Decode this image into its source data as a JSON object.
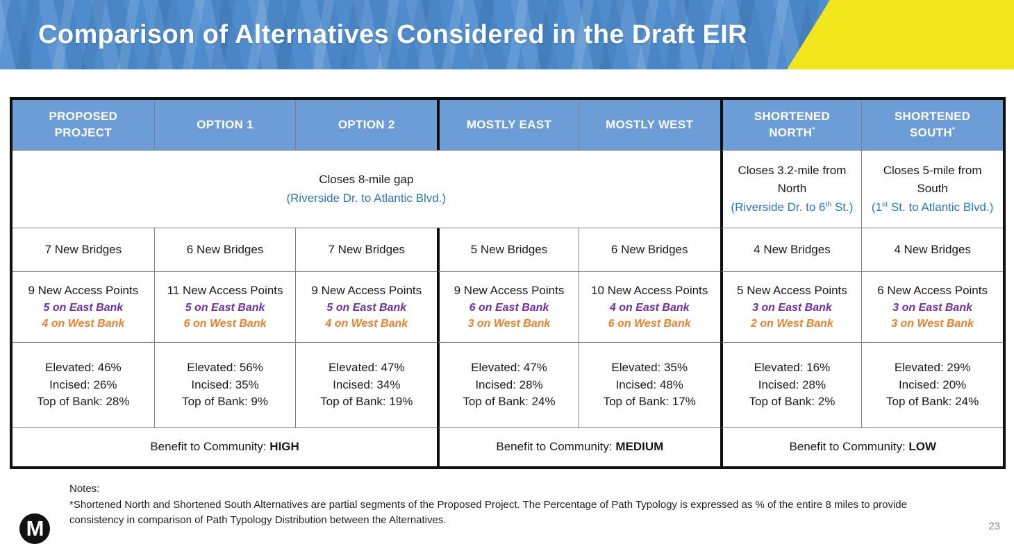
{
  "banner": {
    "title": "Comparison of Alternatives Considered in the Draft EIR",
    "blue_color": "#4e8ccd",
    "yellow_color": "#f2e71d"
  },
  "colors": {
    "header_bg": "#6c9dd6",
    "blue_text": "#2e75b6",
    "east_bank_purple": "#7030a0",
    "west_bank_orange": "#e8812d",
    "thick_border": "#0f0f0f",
    "thin_border": "#7f7f7f"
  },
  "table": {
    "columns": [
      {
        "header_line1": "PROPOSED",
        "header_line2": "PROJECT",
        "header_sup": "",
        "bridges": "7 New Bridges",
        "access": "9 New Access Points",
        "east_bank": "5 on East Bank",
        "west_bank": "4 on West Bank",
        "elevated": "Elevated: 46%",
        "incised": "Incised: 26%",
        "top_of_bank": "Top of Bank: 28%"
      },
      {
        "header_line1": "OPTION 1",
        "header_line2": "",
        "header_sup": "",
        "bridges": "6 New Bridges",
        "access": "11 New Access Points",
        "east_bank": "5 on East Bank",
        "west_bank": "6 on West Bank",
        "elevated": "Elevated: 56%",
        "incised": "Incised: 35%",
        "top_of_bank": "Top of Bank: 9%"
      },
      {
        "header_line1": "OPTION 2",
        "header_line2": "",
        "header_sup": "",
        "bridges": "7 New Bridges",
        "access": "9 New Access Points",
        "east_bank": "5 on East Bank",
        "west_bank": "4 on West Bank",
        "elevated": "Elevated: 47%",
        "incised": "Incised: 34%",
        "top_of_bank": "Top of Bank: 19%"
      },
      {
        "header_line1": "MOSTLY EAST",
        "header_line2": "",
        "header_sup": "",
        "bridges": "5 New Bridges",
        "access": "9 New Access Points",
        "east_bank": "6 on East Bank",
        "west_bank": "3 on West Bank",
        "elevated": "Elevated: 47%",
        "incised": "Incised: 28%",
        "top_of_bank": "Top of Bank: 24%"
      },
      {
        "header_line1": "MOSTLY WEST",
        "header_line2": "",
        "header_sup": "",
        "bridges": "6 New Bridges",
        "access": "10 New Access Points",
        "east_bank": "4 on East Bank",
        "west_bank": "6 on West Bank",
        "elevated": "Elevated: 35%",
        "incised": "Incised: 48%",
        "top_of_bank": "Top of Bank: 17%"
      },
      {
        "header_line1": "SHORTENED",
        "header_line2": "NORTH",
        "header_sup": "*",
        "bridges": "4 New Bridges",
        "access": "5 New Access Points",
        "east_bank": "3 on East Bank",
        "west_bank": "2 on West Bank",
        "elevated": "Elevated: 16%",
        "incised": "Incised: 28%",
        "top_of_bank": "Top of Bank: 2%"
      },
      {
        "header_line1": "SHORTENED",
        "header_line2": "SOUTH",
        "header_sup": "*",
        "bridges": "4 New Bridges",
        "access": "6 New Access Points",
        "east_bank": "3 on East Bank",
        "west_bank": "3 on West Bank",
        "elevated": "Elevated: 29%",
        "incised": "Incised: 20%",
        "top_of_bank": "Top of Bank: 24%"
      }
    ],
    "gap_main": {
      "black": "Closes 8-mile gap",
      "blue": "(Riverside Dr. to Atlantic Blvd.)"
    },
    "gap_north": {
      "black": "Closes 3.2-mile from North",
      "blue_pre": "(Riverside Dr. to 6",
      "blue_sup": "th",
      "blue_post": " St.)"
    },
    "gap_south": {
      "black": "Closes 5-mile from South",
      "blue_pre": "(1",
      "blue_sup": "st",
      "blue_post": " St. to Atlantic Blvd.)"
    },
    "benefit": [
      {
        "label": "Benefit to Community: ",
        "level": "HIGH"
      },
      {
        "label": "Benefit to Community: ",
        "level": "MEDIUM"
      },
      {
        "label": "Benefit to Community: ",
        "level": "LOW"
      }
    ]
  },
  "footer": {
    "notes_heading": "Notes:",
    "notes_text": "*Shortened North and Shortened South Alternatives are partial segments of the Proposed Project.  The Percentage of Path Typology is expressed as % of the entire 8 miles to provide consistency in comparison of Path Typology Distribution between the Alternatives.",
    "logo_letter": "M",
    "page_number": "23"
  }
}
